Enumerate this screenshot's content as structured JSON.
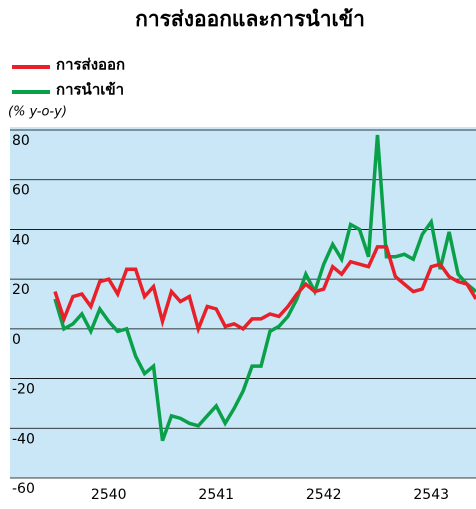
{
  "chart_data": {
    "type": "line",
    "title": "การส่งออกและการนำเข้า",
    "unit_label": "(% y-o-y)",
    "categories": [
      null,
      null,
      null,
      null,
      null,
      null,
      "2540",
      null,
      null,
      null,
      null,
      null,
      null,
      null,
      null,
      null,
      null,
      null,
      "2541",
      null,
      null,
      null,
      null,
      null,
      null,
      null,
      null,
      null,
      null,
      null,
      "2542",
      null,
      null,
      null,
      null,
      null,
      null,
      null,
      null,
      null,
      null,
      null,
      "2543",
      null,
      null,
      null,
      null,
      null
    ],
    "series": [
      {
        "name": "การส่งออก",
        "color": "#e8202a",
        "values": [
          15,
          4,
          13,
          14,
          9,
          19,
          20,
          14,
          24,
          24,
          13,
          17,
          3,
          15,
          11,
          13,
          0,
          9,
          8,
          1,
          2,
          0,
          4,
          4,
          6,
          5,
          9,
          14,
          18,
          15,
          16,
          25,
          22,
          27,
          26,
          25,
          33,
          33,
          21,
          18,
          15,
          16,
          25,
          26,
          21,
          19,
          18,
          12
        ]
      },
      {
        "name": "การนำเข้า",
        "color": "#0aa04a",
        "values": [
          12,
          0,
          2,
          6,
          -1,
          8,
          3,
          -1,
          0,
          -11,
          -18,
          -15,
          -45,
          -35,
          -36,
          -38,
          -39,
          -35,
          -31,
          -38,
          -32,
          -25,
          -15,
          -15,
          -1,
          1,
          5,
          12,
          22,
          15,
          26,
          34,
          28,
          42,
          40,
          29,
          78,
          29,
          29,
          30,
          28,
          38,
          43,
          24,
          39,
          22,
          18,
          15
        ]
      }
    ],
    "ylim": [
      -60,
      80
    ],
    "yticks": [
      -60,
      -40,
      -20,
      0,
      20,
      40,
      60,
      80
    ],
    "grid": true,
    "legend": "top-left",
    "background": "#c9e7f6"
  }
}
